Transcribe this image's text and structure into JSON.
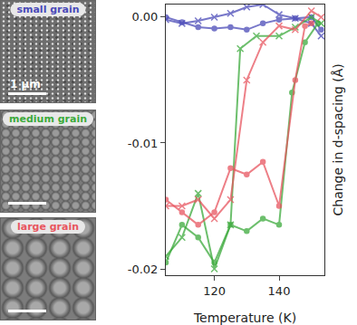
{
  "chart_data": {
    "type": "line",
    "xlabel": "Temperature (K)",
    "ylabel": "Change in d-spacing (Å)",
    "xlim": [
      105,
      154
    ],
    "xticks": [
      120,
      140
    ],
    "ylim": [
      -0.0205,
      0.001
    ],
    "yticks": [
      {
        "value": 0,
        "label": "0.00"
      },
      {
        "value": -0.01,
        "label": "-0.01"
      },
      {
        "value": -0.02,
        "label": "-0.02"
      }
    ],
    "grid": false,
    "series": [
      {
        "name": "small grain",
        "color": "#4a4ab8",
        "marker": "x",
        "x": [
          105,
          110,
          115,
          120,
          125,
          130,
          135,
          140,
          145,
          150,
          153
        ],
        "values": [
          -0.0002,
          -0.0005,
          -0.0003,
          0.0,
          0.0003,
          0.0008,
          0.001,
          0.0002,
          -0.0001,
          -0.0005,
          -0.0015
        ]
      },
      {
        "name": "small grain",
        "color": "#4a4ab8",
        "marker": "circle",
        "x": [
          105,
          110,
          115,
          120,
          125,
          130,
          135,
          140,
          145,
          150,
          153
        ],
        "values": [
          0.0,
          -0.0004,
          -0.0008,
          -0.0009,
          -0.0008,
          -0.001,
          -0.0005,
          -0.0002,
          -0.0001,
          0.0,
          -0.001
        ]
      },
      {
        "name": "medium grain",
        "color": "#3caa3c",
        "marker": "x",
        "x": [
          105,
          110,
          115,
          120,
          125,
          128,
          133,
          140,
          145,
          150,
          153
        ],
        "values": [
          -0.019,
          -0.0175,
          -0.014,
          -0.02,
          -0.0165,
          -0.0025,
          -0.0015,
          -0.0015,
          -0.0008,
          0.0,
          -0.0005
        ]
      },
      {
        "name": "medium grain",
        "color": "#3caa3c",
        "marker": "circle",
        "x": [
          105,
          110,
          115,
          120,
          125,
          130,
          135,
          140,
          144,
          148,
          152
        ],
        "values": [
          -0.0195,
          -0.0165,
          -0.0175,
          -0.0195,
          -0.0165,
          -0.017,
          -0.016,
          -0.0165,
          -0.006,
          -0.002,
          -0.0005
        ]
      },
      {
        "name": "large grain",
        "color": "#e8555f",
        "marker": "x",
        "x": [
          105,
          110,
          115,
          120,
          125,
          130,
          135,
          140,
          145,
          150,
          153
        ],
        "values": [
          -0.015,
          -0.015,
          -0.0145,
          -0.016,
          -0.0145,
          -0.005,
          -0.002,
          -0.0007,
          -0.001,
          0.0005,
          0.0
        ]
      },
      {
        "name": "large grain",
        "color": "#e8555f",
        "marker": "circle",
        "x": [
          105,
          110,
          115,
          120,
          125,
          130,
          135,
          140,
          145,
          148,
          150
        ],
        "values": [
          -0.0145,
          -0.0155,
          -0.0165,
          -0.0155,
          -0.012,
          -0.0125,
          -0.0115,
          -0.015,
          -0.005,
          -0.0007,
          -0.0005
        ]
      }
    ]
  },
  "panels": [
    {
      "label": "small grain",
      "color": "#4a4ab8",
      "scale_label": "1 µm"
    },
    {
      "label": "medium grain",
      "color": "#3caa3c"
    },
    {
      "label": "large grain",
      "color": "#e8555f"
    }
  ]
}
